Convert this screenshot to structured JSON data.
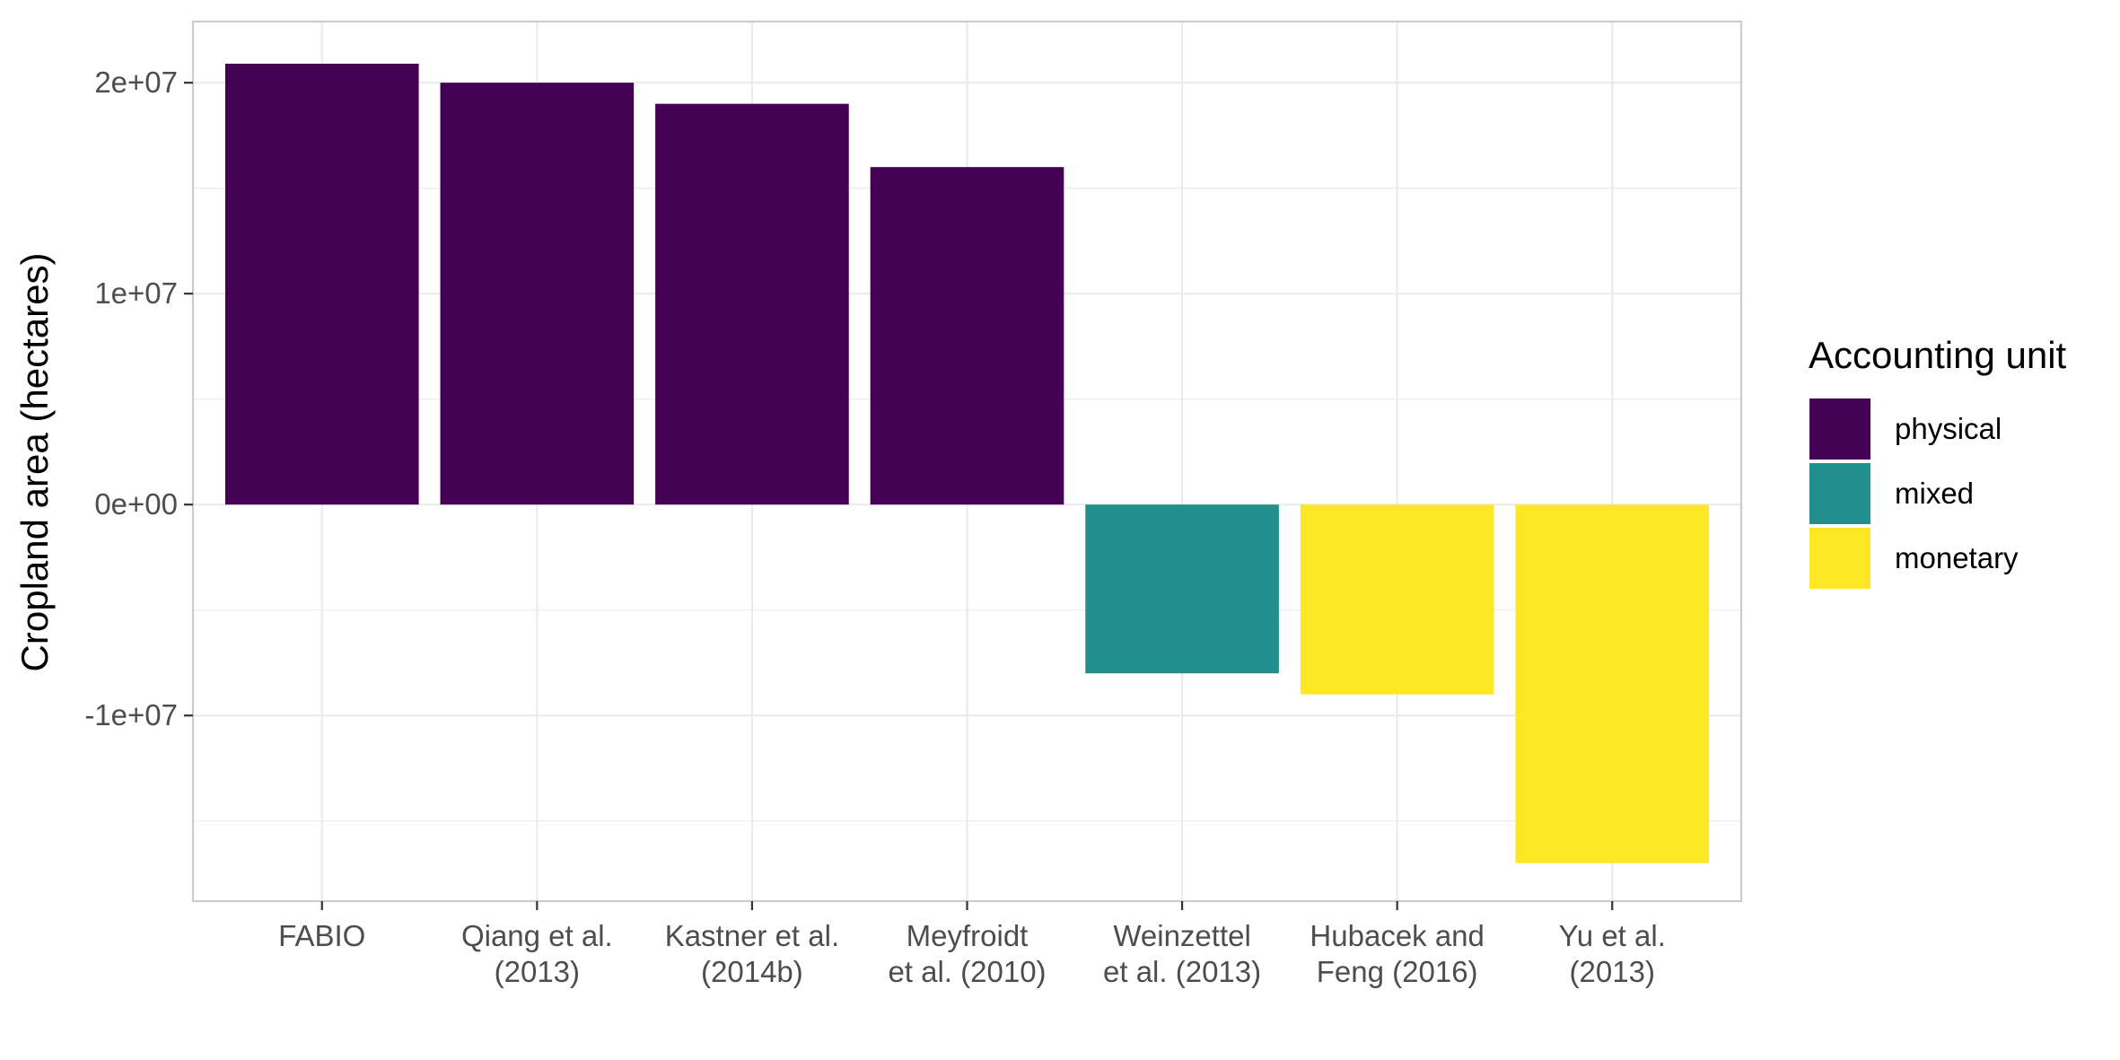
{
  "chart_data": {
    "type": "bar",
    "title": "",
    "xlabel": "",
    "ylabel": "Cropland area (hectares)",
    "ylim": [
      -18800000,
      22900000
    ],
    "yticks": [
      {
        "value": 20000000,
        "label": "2e+07"
      },
      {
        "value": 10000000,
        "label": "1e+07"
      },
      {
        "value": 0,
        "label": "0e+00"
      },
      {
        "value": -10000000,
        "label": "-1e+07"
      }
    ],
    "y_minor_gridlines": [
      15000000,
      5000000,
      -5000000,
      -15000000
    ],
    "categories": [
      {
        "lines": [
          "FABIO"
        ]
      },
      {
        "lines": [
          "Qiang et al.",
          "(2013)"
        ]
      },
      {
        "lines": [
          "Kastner et al.",
          "(2014b)"
        ]
      },
      {
        "lines": [
          "Meyfroidt",
          "et al. (2010)"
        ]
      },
      {
        "lines": [
          "Weinzettel",
          "et al. (2013)"
        ]
      },
      {
        "lines": [
          "Hubacek and",
          "Feng (2016)"
        ]
      },
      {
        "lines": [
          "Yu et al.",
          "(2013)"
        ]
      }
    ],
    "values": [
      20900000,
      20000000,
      19000000,
      16000000,
      -8000000,
      -9000000,
      -17000000
    ],
    "units": [
      "physical",
      "physical",
      "physical",
      "physical",
      "mixed",
      "monetary",
      "monetary"
    ],
    "legend": {
      "title": "Accounting unit",
      "placement": "right",
      "entries": [
        {
          "label": "physical",
          "color": "#440154"
        },
        {
          "label": "mixed",
          "color": "#21908C"
        },
        {
          "label": "monetary",
          "color": "#FDE725"
        }
      ]
    },
    "grid": true
  }
}
